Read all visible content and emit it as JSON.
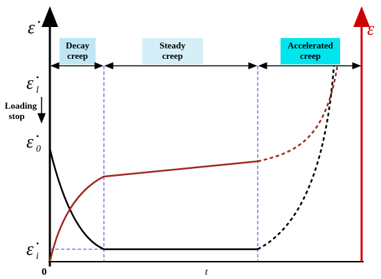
{
  "axes": {
    "left_label": {
      "symbol": "ε̇"
    },
    "right_label": {
      "symbol": "ε"
    },
    "origin": "0",
    "x_label": "t"
  },
  "levels": [
    {
      "symbol": "ε̇",
      "sub": "l"
    },
    {
      "symbol": "ε̇",
      "sub": "0"
    },
    {
      "symbol": "ε̇",
      "sub": "i"
    }
  ],
  "loading_stop": [
    "Loading",
    "stop"
  ],
  "stages": [
    {
      "lines": [
        "Decay",
        "creep"
      ]
    },
    {
      "lines": [
        "Steady",
        "creep"
      ]
    },
    {
      "lines": [
        "Accelerated",
        "creep"
      ]
    }
  ]
}
